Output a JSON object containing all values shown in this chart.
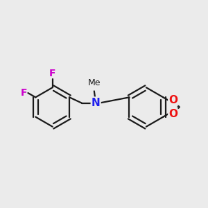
{
  "background_color": "#ebebeb",
  "bond_color": "#1a1a1a",
  "N_color": "#2020ee",
  "O_color": "#ee1111",
  "F_color": "#cc00cc",
  "C_color": "#1a1a1a",
  "line_width": 1.6,
  "font_size": 10,
  "fig_size": [
    3.0,
    3.0
  ],
  "dpi": 100,
  "xlim": [
    0,
    10
  ],
  "ylim": [
    0,
    10
  ]
}
